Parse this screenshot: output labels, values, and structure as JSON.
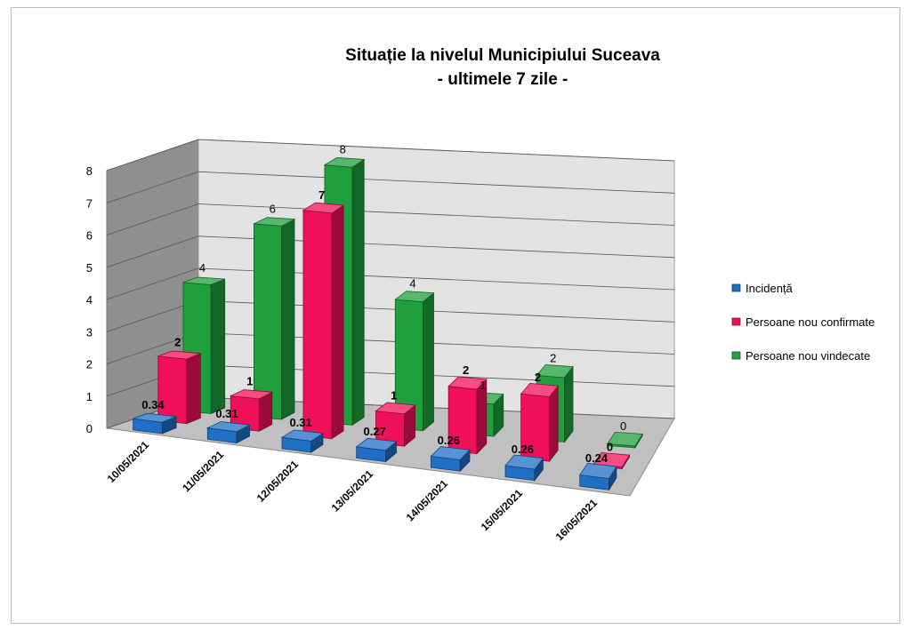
{
  "chart_data": {
    "type": "bar",
    "title_line1": "Situație la nivelul Municipiului Suceava",
    "title_line2": "- ultimele 7 zile -",
    "categories": [
      "10/05/2021",
      "11/05/2021",
      "12/05/2021",
      "13/05/2021",
      "14/05/2021",
      "15/05/2021",
      "16/05/2021"
    ],
    "series": [
      {
        "name": "Incidență",
        "color": "#1f6fc5",
        "values": [
          0.34,
          0.31,
          0.31,
          0.27,
          0.26,
          0.26,
          0.24
        ]
      },
      {
        "name": "Persoane nou confirmate",
        "color": "#f0105a",
        "values": [
          2,
          1,
          7,
          1,
          2,
          2,
          0
        ]
      },
      {
        "name": "Persoane nou vindecate",
        "color": "#1fa03c",
        "values": [
          4,
          6,
          8,
          4,
          1,
          2,
          0
        ]
      }
    ],
    "ylim": [
      0,
      8
    ],
    "yticks": [
      0,
      1,
      2,
      3,
      4,
      5,
      6,
      7,
      8
    ],
    "grid": true,
    "legend_position": "right"
  }
}
